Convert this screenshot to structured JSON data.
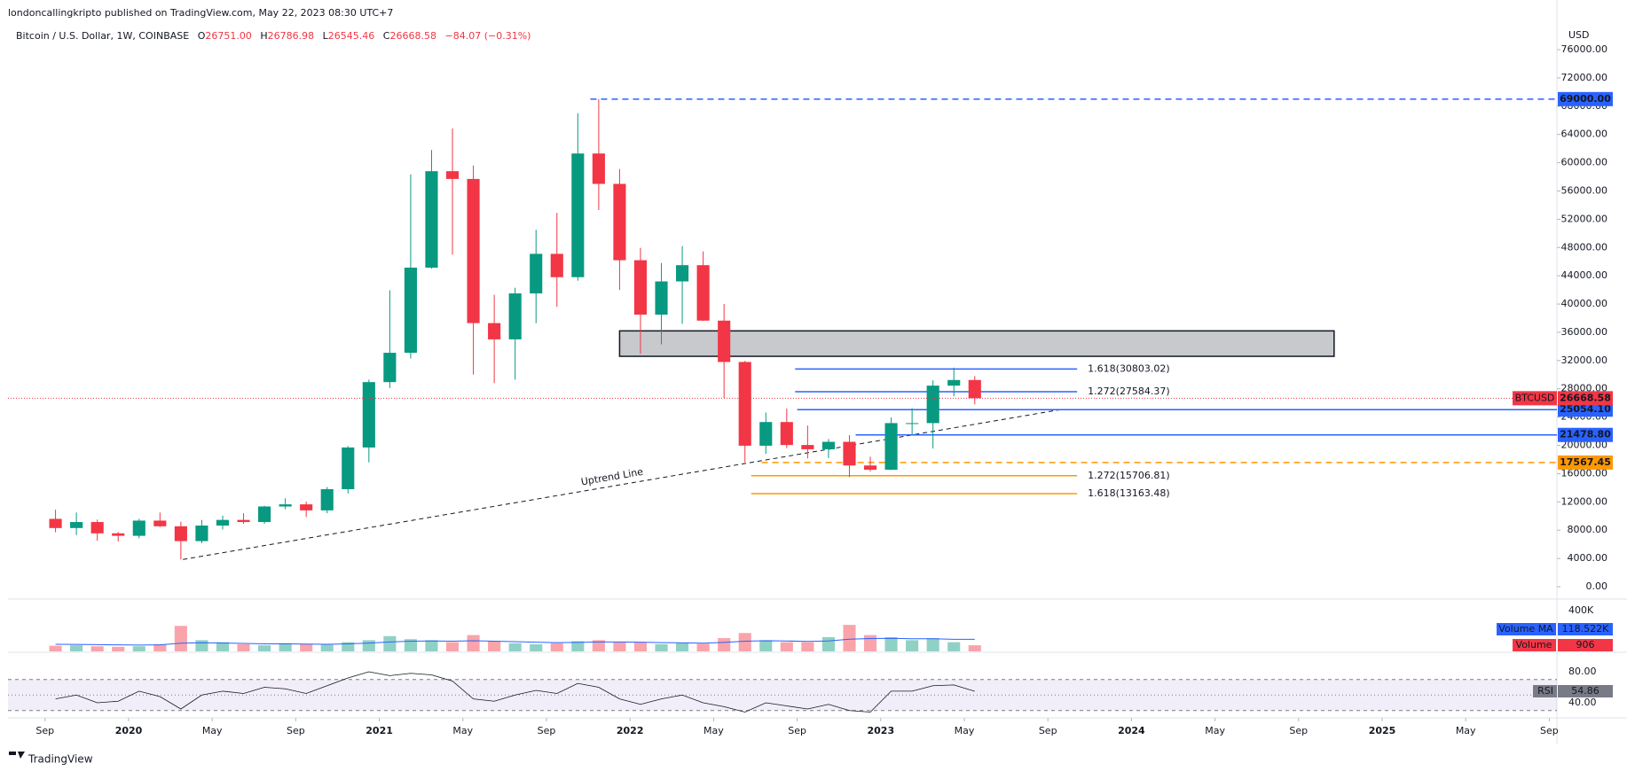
{
  "header": {
    "publisher": "londoncallingkripto published on TradingView.com, May 22, 2023 08:30 UTC+7",
    "symbol": "Bitcoin / U.S. Dollar, 1W, COINBASE",
    "o_label": "O",
    "o": "26751.00",
    "h_label": "H",
    "h": "26786.98",
    "l_label": "L",
    "l": "26545.46",
    "c_label": "C",
    "c": "26668.58",
    "change": "−84.07 (−0.31%)"
  },
  "footer": "TradingView",
  "chart_data": {
    "type": "candlestick",
    "currency": "USD",
    "symbol_tag": "BTCUSD",
    "up_color": "#089981",
    "down_color": "#f23645",
    "candles": [
      {
        "x": "2019-09",
        "open": 9600,
        "high": 10900,
        "low": 7700,
        "close": 8300
      },
      {
        "x": "2019-10",
        "open": 8300,
        "high": 10500,
        "low": 7300,
        "close": 9150
      },
      {
        "x": "2019-11",
        "open": 9150,
        "high": 9500,
        "low": 6500,
        "close": 7550
      },
      {
        "x": "2019-12",
        "open": 7550,
        "high": 7750,
        "low": 6400,
        "close": 7200
      },
      {
        "x": "2020-01",
        "open": 7200,
        "high": 9600,
        "low": 6850,
        "close": 9350
      },
      {
        "x": "2020-02",
        "open": 9350,
        "high": 10500,
        "low": 8450,
        "close": 8550
      },
      {
        "x": "2020-03",
        "open": 8550,
        "high": 9200,
        "low": 3850,
        "close": 6450
      },
      {
        "x": "2020-04",
        "open": 6450,
        "high": 9450,
        "low": 6150,
        "close": 8650
      },
      {
        "x": "2020-05",
        "open": 8650,
        "high": 10050,
        "low": 8100,
        "close": 9450
      },
      {
        "x": "2020-06",
        "open": 9450,
        "high": 10400,
        "low": 8900,
        "close": 9150
      },
      {
        "x": "2020-07",
        "open": 9150,
        "high": 11450,
        "low": 8900,
        "close": 11350
      },
      {
        "x": "2020-08",
        "open": 11350,
        "high": 12500,
        "low": 10950,
        "close": 11650
      },
      {
        "x": "2020-09",
        "open": 11650,
        "high": 12050,
        "low": 9850,
        "close": 10800
      },
      {
        "x": "2020-10",
        "open": 10800,
        "high": 14100,
        "low": 10400,
        "close": 13800
      },
      {
        "x": "2020-11",
        "open": 13800,
        "high": 19900,
        "low": 13200,
        "close": 19700
      },
      {
        "x": "2020-12",
        "open": 19700,
        "high": 29300,
        "low": 17600,
        "close": 28950
      },
      {
        "x": "2021-01",
        "open": 28950,
        "high": 41950,
        "low": 28100,
        "close": 33100
      },
      {
        "x": "2021-02",
        "open": 33100,
        "high": 58350,
        "low": 32300,
        "close": 45150
      },
      {
        "x": "2021-03",
        "open": 45150,
        "high": 61800,
        "low": 45000,
        "close": 58800
      },
      {
        "x": "2021-04",
        "open": 58800,
        "high": 64850,
        "low": 47000,
        "close": 57700
      },
      {
        "x": "2021-05",
        "open": 57700,
        "high": 59600,
        "low": 30000,
        "close": 37300
      },
      {
        "x": "2021-06",
        "open": 37300,
        "high": 41300,
        "low": 28800,
        "close": 35000
      },
      {
        "x": "2021-07",
        "open": 35000,
        "high": 42300,
        "low": 29300,
        "close": 41500
      },
      {
        "x": "2021-08",
        "open": 41500,
        "high": 50500,
        "low": 37300,
        "close": 47100
      },
      {
        "x": "2021-09",
        "open": 47100,
        "high": 52900,
        "low": 39600,
        "close": 43800
      },
      {
        "x": "2021-10",
        "open": 43800,
        "high": 67000,
        "low": 43300,
        "close": 61300
      },
      {
        "x": "2021-11",
        "open": 61300,
        "high": 69000,
        "low": 53300,
        "close": 57000
      },
      {
        "x": "2021-12",
        "open": 57000,
        "high": 59100,
        "low": 42000,
        "close": 46200
      },
      {
        "x": "2022-01",
        "open": 46200,
        "high": 47950,
        "low": 32950,
        "close": 38500
      },
      {
        "x": "2022-02",
        "open": 38500,
        "high": 45800,
        "low": 34300,
        "close": 43200
      },
      {
        "x": "2022-03",
        "open": 43200,
        "high": 48200,
        "low": 37200,
        "close": 45500
      },
      {
        "x": "2022-04",
        "open": 45500,
        "high": 47450,
        "low": 37600,
        "close": 37650
      },
      {
        "x": "2022-05",
        "open": 37650,
        "high": 40000,
        "low": 26700,
        "close": 31800
      },
      {
        "x": "2022-06",
        "open": 31800,
        "high": 31950,
        "low": 17600,
        "close": 19950
      },
      {
        "x": "2022-07",
        "open": 19950,
        "high": 24650,
        "low": 18800,
        "close": 23300
      },
      {
        "x": "2022-08",
        "open": 23300,
        "high": 25200,
        "low": 19600,
        "close": 20050
      },
      {
        "x": "2022-09",
        "open": 20050,
        "high": 22800,
        "low": 18150,
        "close": 19450
      },
      {
        "x": "2022-10",
        "open": 19450,
        "high": 20900,
        "low": 18200,
        "close": 20500
      },
      {
        "x": "2022-11",
        "open": 20500,
        "high": 21450,
        "low": 15500,
        "close": 17150
      },
      {
        "x": "2022-12",
        "open": 17150,
        "high": 18400,
        "low": 16300,
        "close": 16550
      },
      {
        "x": "2023-01",
        "open": 16550,
        "high": 23950,
        "low": 16500,
        "close": 23150
      },
      {
        "x": "2023-02",
        "open": 23150,
        "high": 25250,
        "low": 21400,
        "close": 23150
      },
      {
        "x": "2023-03",
        "open": 23150,
        "high": 29200,
        "low": 19550,
        "close": 28450
      },
      {
        "x": "2023-04",
        "open": 28450,
        "high": 31000,
        "low": 26950,
        "close": 29250
      },
      {
        "x": "2023-05",
        "open": 29250,
        "high": 29800,
        "low": 25800,
        "close": 26668.58
      }
    ],
    "ylim": [
      0,
      76000
    ],
    "yticks": [
      {
        "value": 0,
        "label": "0.00"
      },
      {
        "value": 4000,
        "label": "4000.00"
      },
      {
        "value": 8000,
        "label": "8000.00"
      },
      {
        "value": 12000,
        "label": "12000.00"
      },
      {
        "value": 16000,
        "label": "16000.00"
      },
      {
        "value": 20000,
        "label": "20000.00"
      },
      {
        "value": 24000,
        "label": "24000.00"
      },
      {
        "value": 28000,
        "label": "28000.00"
      },
      {
        "value": 32000,
        "label": "32000.00"
      },
      {
        "value": 36000,
        "label": "36000.00"
      },
      {
        "value": 40000,
        "label": "40000.00"
      },
      {
        "value": 44000,
        "label": "44000.00"
      },
      {
        "value": 48000,
        "label": "48000.00"
      },
      {
        "value": 52000,
        "label": "52000.00"
      },
      {
        "value": 56000,
        "label": "56000.00"
      },
      {
        "value": 60000,
        "label": "60000.00"
      },
      {
        "value": 64000,
        "label": "64000.00"
      },
      {
        "value": 68000,
        "label": "68000.00"
      },
      {
        "value": 72000,
        "label": "72000.00"
      },
      {
        "value": 76000,
        "label": "76000.00"
      }
    ],
    "xticks": [
      {
        "value": "2019-09",
        "label": "Sep"
      },
      {
        "value": "2020-01",
        "label": "2020"
      },
      {
        "value": "2020-05",
        "label": "May"
      },
      {
        "value": "2020-09",
        "label": "Sep"
      },
      {
        "value": "2021-01",
        "label": "2021"
      },
      {
        "value": "2021-05",
        "label": "May"
      },
      {
        "value": "2021-09",
        "label": "Sep"
      },
      {
        "value": "2022-01",
        "label": "2022"
      },
      {
        "value": "2022-05",
        "label": "May"
      },
      {
        "value": "2022-09",
        "label": "Sep"
      },
      {
        "value": "2023-01",
        "label": "2023"
      },
      {
        "value": "2023-05",
        "label": "May"
      },
      {
        "value": "2023-09",
        "label": "Sep"
      },
      {
        "value": "2024-01",
        "label": "2024"
      },
      {
        "value": "2024-05",
        "label": "May"
      },
      {
        "value": "2024-09",
        "label": "Sep"
      },
      {
        "value": "2025-01",
        "label": "2025"
      },
      {
        "value": "2025-05",
        "label": "May"
      },
      {
        "value": "2025-09",
        "label": "Sep"
      }
    ],
    "levels": [
      {
        "value": 69000,
        "value_label": "69000.00",
        "color": "#2962ff",
        "style": "dashed",
        "tag": true
      },
      {
        "value": 25054.1,
        "value_label": "25054.10",
        "color": "#2962ff",
        "style": "solid",
        "tag": true
      },
      {
        "value": 21478.8,
        "value_label": "21478.80",
        "color": "#2962ff",
        "style": "solid",
        "tag": true
      },
      {
        "value": 17567.45,
        "value_label": "17567.45",
        "color": "#ff9800",
        "style": "dashed",
        "tag": true
      },
      {
        "value": 30803.02,
        "label": "1.618(30803.02)",
        "color": "#2962ff",
        "style": "solid",
        "tag": false
      },
      {
        "value": 27584.37,
        "label": "1.272(27584.37)",
        "color": "#2962ff",
        "style": "solid",
        "tag": false
      },
      {
        "value": 15706.81,
        "label": "1.272(15706.81)",
        "color": "#ff9800",
        "style": "solid",
        "tag": false
      },
      {
        "value": 13163.48,
        "label": "1.618(13163.48)",
        "color": "#ff9800",
        "style": "solid",
        "tag": false
      }
    ],
    "zone": {
      "top": 36200,
      "bottom": 32600
    },
    "trendline": {
      "label": "Uptrend Line",
      "start": 3850,
      "end": 25054.1
    },
    "volume": {
      "name": "Volume",
      "last": 906,
      "ylim": [
        0,
        400000
      ],
      "yticks": [
        {
          "value": 400000,
          "label": "400K"
        }
      ],
      "values": [
        55000,
        60000,
        50000,
        45000,
        50000,
        70000,
        250000,
        110000,
        90000,
        70000,
        60000,
        80000,
        70000,
        65000,
        90000,
        110000,
        150000,
        120000,
        110000,
        90000,
        160000,
        100000,
        80000,
        70000,
        80000,
        100000,
        110000,
        90000,
        90000,
        70000,
        80000,
        75000,
        130000,
        180000,
        110000,
        90000,
        90000,
        140000,
        260000,
        160000,
        140000,
        110000,
        130000,
        90000,
        60000
      ],
      "ma_name": "Volume MA",
      "ma_color": "#2962ff",
      "ma_last_label": "118.522K",
      "ma": [
        70000,
        68000,
        66000,
        64000,
        62000,
        64000,
        80000,
        85000,
        82000,
        78000,
        74000,
        74000,
        72000,
        70000,
        74000,
        82000,
        92000,
        100000,
        102000,
        100000,
        104000,
        100000,
        96000,
        90000,
        86000,
        88000,
        92000,
        92000,
        90000,
        86000,
        84000,
        80000,
        88000,
        100000,
        104000,
        102000,
        98000,
        102000,
        120000,
        126000,
        128000,
        124000,
        124000,
        118000,
        118522
      ]
    },
    "rsi": {
      "name": "RSI",
      "color": "#7e57c2",
      "ylim": [
        20,
        90
      ],
      "yticks": [
        {
          "value": 80,
          "label": "80.00"
        },
        {
          "value": 40,
          "label": "40.00"
        }
      ],
      "bands": [
        70,
        50,
        30
      ],
      "values": [
        45,
        50,
        40,
        42,
        55,
        48,
        32,
        50,
        55,
        52,
        60,
        58,
        52,
        62,
        72,
        80,
        75,
        78,
        76,
        68,
        45,
        42,
        50,
        56,
        52,
        65,
        60,
        45,
        38,
        45,
        50,
        40,
        35,
        28,
        40,
        36,
        32,
        38,
        30,
        28,
        55,
        55,
        62,
        63,
        54.86
      ]
    }
  }
}
